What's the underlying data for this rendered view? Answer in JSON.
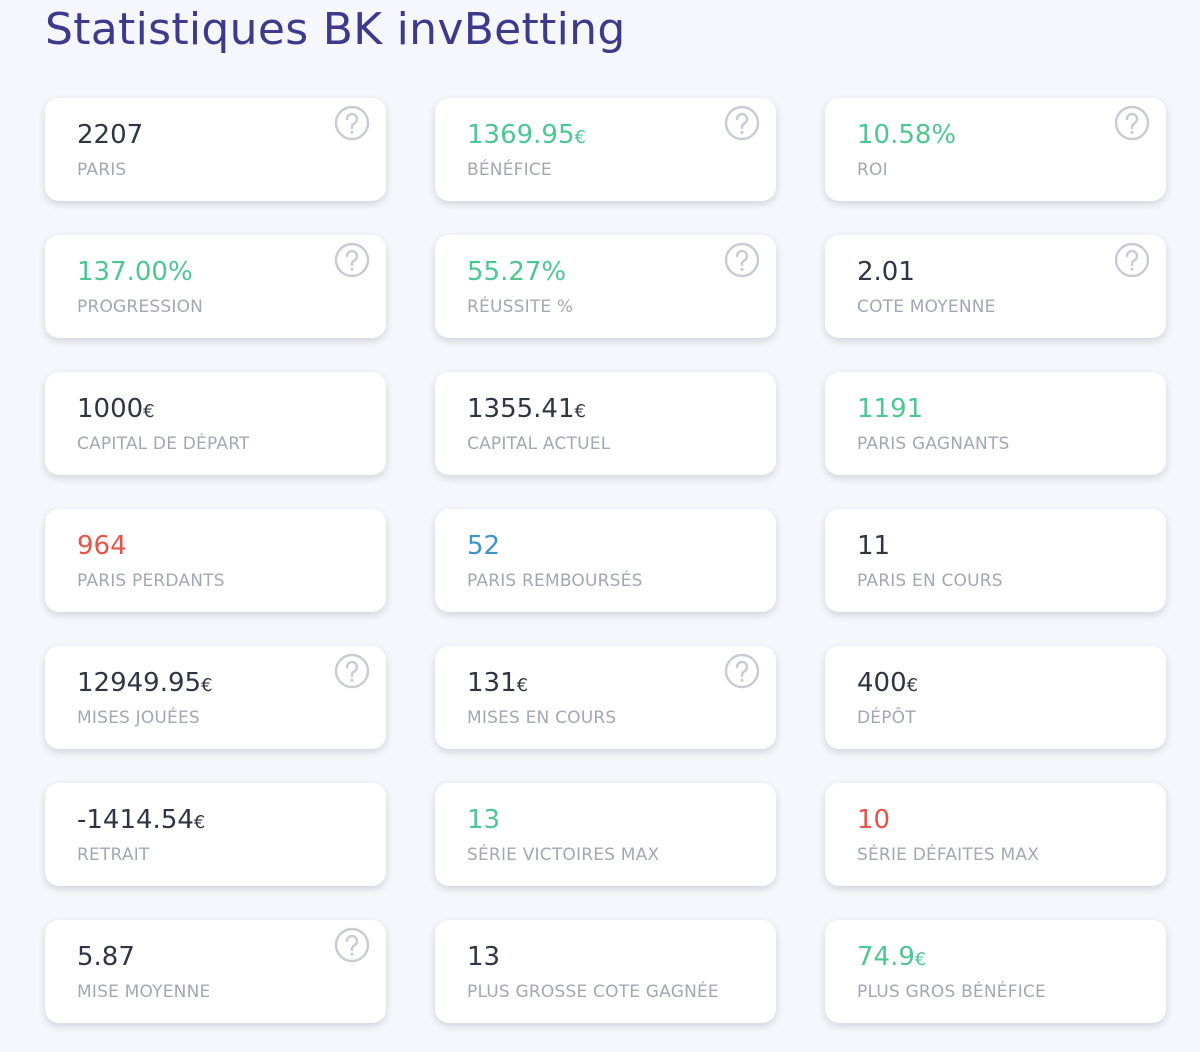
{
  "header": {
    "title": "Statistiques BK invBetting"
  },
  "cards": [
    {
      "value": "2207",
      "label": "PARIS",
      "color": "#2f3542",
      "help": true
    },
    {
      "value": "1369.95",
      "unit": "€",
      "label": "BÉNÉFICE",
      "color": "#4cc792",
      "help": true
    },
    {
      "value": "10.58%",
      "label": "ROI",
      "color": "#4cc792",
      "help": true
    },
    {
      "value": "137.00%",
      "label": "PROGRESSION",
      "color": "#4cc792",
      "help": true
    },
    {
      "value": "55.27%",
      "label": "RÉUSSITE %",
      "color": "#4cc792",
      "help": true
    },
    {
      "value": "2.01",
      "label": "COTE MOYENNE",
      "color": "#2f3542",
      "help": true
    },
    {
      "value": "1000",
      "unit": "€",
      "label": "CAPITAL DE DÉPART",
      "color": "#2f3542",
      "help": false
    },
    {
      "value": "1355.41",
      "unit": "€",
      "label": "CAPITAL ACTUEL",
      "color": "#2f3542",
      "help": false
    },
    {
      "value": "1191",
      "label": "PARIS GAGNANTS",
      "color": "#4cc792",
      "help": false
    },
    {
      "value": "964",
      "label": "PARIS PERDANTS",
      "color": "#e5534b",
      "help": false
    },
    {
      "value": "52",
      "label": "PARIS REMBOURSÉS",
      "color": "#3f93c8",
      "help": false
    },
    {
      "value": "11",
      "label": "PARIS EN COURS",
      "color": "#2f3542",
      "help": false
    },
    {
      "value": "12949.95",
      "unit": "€",
      "label": "MISES JOUÉES",
      "color": "#2f3542",
      "help": true
    },
    {
      "value": "131",
      "unit": "€",
      "label": "MISES EN COURS",
      "color": "#2f3542",
      "help": true
    },
    {
      "value": "400",
      "unit": "€",
      "label": "DÉPÔT",
      "color": "#2f3542",
      "help": false
    },
    {
      "value": "-1414.54",
      "unit": "€",
      "label": "RETRAIT",
      "color": "#2f3542",
      "help": false
    },
    {
      "value": "13",
      "label": "SÉRIE VICTOIRES MAX",
      "color": "#4cc792",
      "help": false
    },
    {
      "value": "10",
      "label": "SÉRIE DÉFAITES MAX",
      "color": "#e5534b",
      "help": false
    },
    {
      "value": "5.87",
      "label": "MISE MOYENNE",
      "color": "#2f3542",
      "help": true
    },
    {
      "value": "13",
      "label": "PLUS GROSSE COTE GAGNÉE",
      "color": "#2f3542",
      "help": false
    },
    {
      "value": "74.9",
      "unit": "€",
      "label": "PLUS GROS BÉNÉFICE",
      "color": "#4cc792",
      "help": false
    }
  ]
}
